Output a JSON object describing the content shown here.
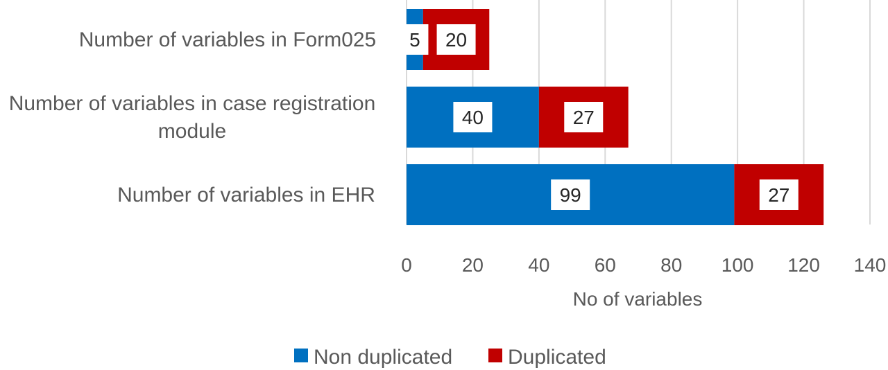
{
  "chart_data": {
    "type": "bar",
    "orientation": "horizontal",
    "stacked": true,
    "categories": [
      "Number of variables in Form025",
      "Number of variables in case registration module",
      "Number of variables in EHR"
    ],
    "category_lines": [
      [
        "Number of variables in Form025"
      ],
      [
        "Number of variables in case registration",
        "module"
      ],
      [
        "Number of variables in EHR"
      ]
    ],
    "series": [
      {
        "name": "Non duplicated",
        "color": "#0070C0",
        "values": [
          5,
          40,
          99
        ]
      },
      {
        "name": "Duplicated",
        "color": "#C00000",
        "values": [
          20,
          27,
          27
        ]
      }
    ],
    "xlabel": "No of variables",
    "ylabel": "",
    "xlim": [
      0,
      140
    ],
    "xticks": [
      0,
      20,
      40,
      60,
      80,
      100,
      120,
      140
    ],
    "grid": true,
    "legend": "bottom"
  }
}
